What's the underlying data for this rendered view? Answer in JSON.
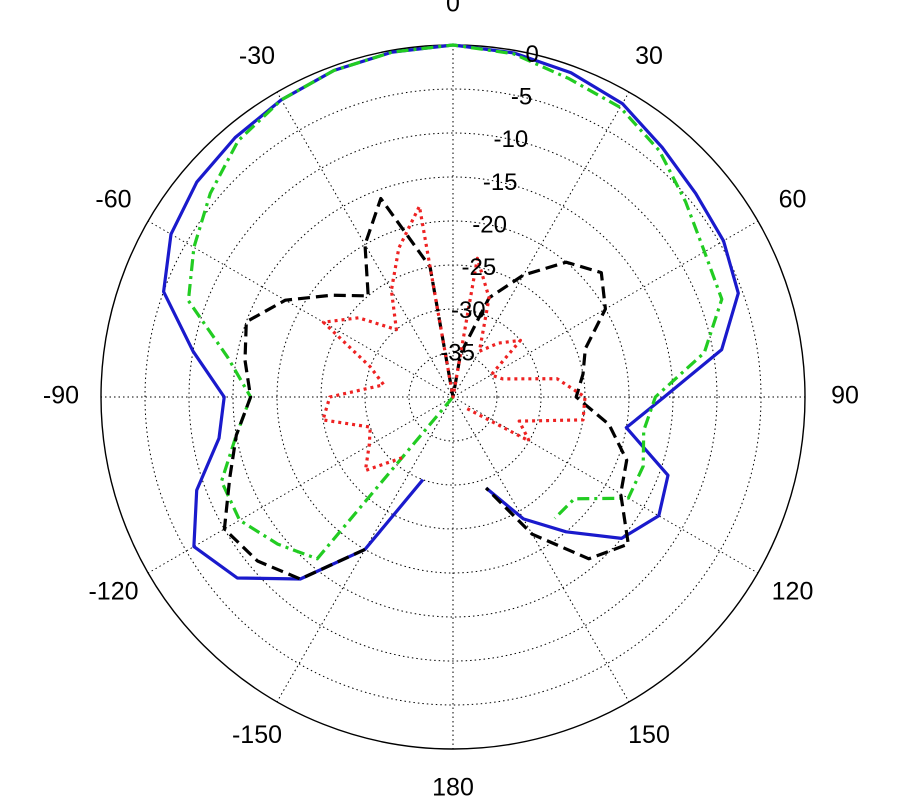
{
  "chart_data": {
    "type": "polar",
    "angle_unit": "deg",
    "radial_scale": "dB",
    "rlim": [
      -40,
      0
    ],
    "radial_ticks": [
      0,
      -5,
      -10,
      -15,
      -20,
      -25,
      -30,
      -35
    ],
    "radial_tick_labels": [
      "0",
      "-5",
      "-10",
      "-15",
      "-20",
      "-25",
      "-30",
      "-35"
    ],
    "angle_ticks": [
      0,
      30,
      60,
      90,
      120,
      150,
      180,
      -150,
      -120,
      -90,
      -60,
      -30
    ],
    "angle_tick_labels": [
      "0",
      "30",
      "60",
      "90",
      "120",
      "150",
      "180",
      "-150",
      "-120",
      "-90",
      "-60",
      "-30"
    ],
    "grid": true,
    "series": [
      {
        "color": "#1a1acc",
        "style": "solid",
        "angles": [
          -160,
          -150,
          -140,
          -130,
          -120,
          -110,
          -100,
          -90,
          -80,
          -70,
          -60,
          -50,
          -40,
          -30,
          -20,
          -10,
          0,
          10,
          20,
          30,
          40,
          50,
          60,
          70,
          80,
          90,
          100,
          110,
          120,
          130,
          140,
          150,
          160
        ],
        "values": [
          -30,
          -20,
          -13,
          -8,
          -6,
          -9,
          -13,
          -14,
          -10,
          -5,
          -3,
          -2,
          -1.5,
          -1,
          -0.5,
          -0.2,
          0,
          -0.3,
          -0.8,
          -1.5,
          -3,
          -4,
          -4.5,
          -5.5,
          -9,
          -16,
          -20,
          -14,
          -13,
          -15,
          -20,
          -24,
          -29
        ]
      },
      {
        "color": "#22cc22",
        "style": "dashdot",
        "angles": [
          -145,
          -140,
          -130,
          -120,
          -110,
          -100,
          -90,
          -80,
          -70,
          -60,
          -50,
          -40,
          -30,
          -20,
          -10,
          0,
          10,
          20,
          30,
          40,
          50,
          60,
          70,
          80,
          90,
          100,
          110,
          120,
          130,
          140
        ],
        "values": [
          -40,
          -16,
          -14,
          -12,
          -12,
          -15,
          -17,
          -14,
          -8,
          -6,
          -4,
          -2,
          -1,
          -0.5,
          -0.2,
          0,
          -0.4,
          -1.5,
          -2,
          -3.5,
          -5.5,
          -7,
          -7.5,
          -11,
          -17,
          -18,
          -17,
          -17,
          -22,
          -22
        ]
      },
      {
        "color": "#000000",
        "style": "dashed",
        "angles": [
          -150,
          -140,
          -130,
          -120,
          -110,
          -100,
          -90,
          -80,
          -70,
          -60,
          -50,
          -40,
          -30,
          -20,
          -10,
          0,
          10,
          20,
          30,
          40,
          50,
          60,
          70,
          80,
          90,
          100,
          110,
          120,
          130,
          140,
          150,
          160
        ],
        "values": [
          -20,
          -13,
          -11,
          -10,
          -13,
          -15,
          -17,
          -16,
          -15,
          -18,
          -22,
          -25,
          -20,
          -16,
          -25,
          -40,
          -35,
          -28,
          -24,
          -20,
          -18,
          -20,
          -24,
          -25,
          -26,
          -22,
          -19,
          -18,
          -14,
          -16,
          -22,
          -29
        ]
      },
      {
        "color": "#ee2222",
        "style": "dotted",
        "angles": [
          -140,
          -130,
          -120,
          -110,
          -100,
          -90,
          -80,
          -70,
          -60,
          -50,
          -40,
          -30,
          -20,
          -10,
          0,
          10,
          20,
          30,
          40,
          50,
          60,
          70,
          80,
          90,
          100,
          110,
          120,
          130
        ],
        "values": [
          -31,
          -27,
          -29,
          -30,
          -25,
          -26,
          -32,
          -30,
          -23,
          -26,
          -30,
          -26,
          -22,
          -18,
          -40,
          -24,
          -28,
          -34,
          -32,
          -30,
          -35,
          -34,
          -28,
          -25,
          -25,
          -32,
          -30,
          -38
        ]
      }
    ]
  }
}
